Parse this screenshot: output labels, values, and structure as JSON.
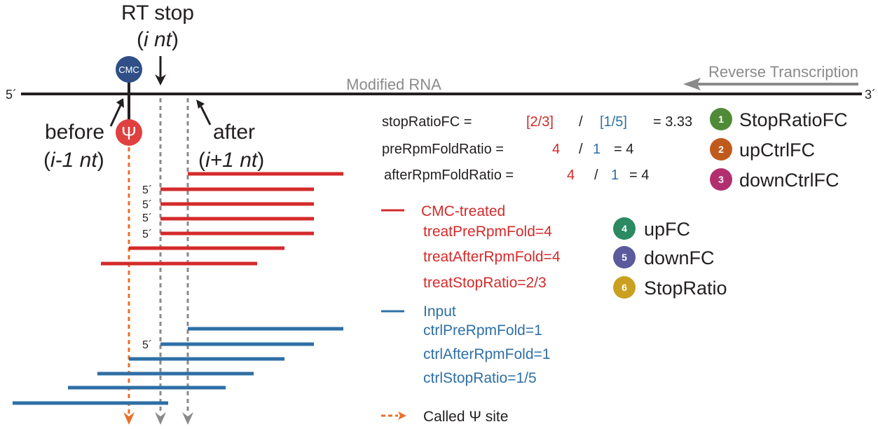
{
  "header": {
    "rt_stop": "RT stop",
    "i_nt_open": "(",
    "i_nt_italic": "i nt",
    "i_nt_close": ")",
    "cmc_label": "CMC",
    "five_prime": "5´",
    "three_prime": "3´",
    "modified_rna": "Modified RNA",
    "reverse_transcription": "Reverse Transcription",
    "before": "before",
    "before_pos_open": "(",
    "before_pos_italic": "i-1 nt",
    "before_pos_close": ")",
    "after": "after",
    "after_pos_open": "(",
    "after_pos_italic": "i+1 nt",
    "after_pos_close": ")",
    "psi": "Ψ"
  },
  "formulas": {
    "stop_ratio_fc": {
      "name": "stopRatioFC =",
      "num": "[2/3]",
      "sep": "/",
      "den": "[1/5]",
      "result": "= 3.33"
    },
    "pre_rpm_fold_ratio": {
      "name": "preRpmFoldRatio =",
      "num": "4",
      "sep": "/",
      "den": "1",
      "result": "= 4"
    },
    "after_rpm_fold_ratio": {
      "name": "afterRpmFoldRatio =",
      "num": "4",
      "sep": "/",
      "den": "1",
      "result": "= 4"
    }
  },
  "badges": [
    {
      "num": "1",
      "label": "StopRatioFC",
      "color": "#4f8a36"
    },
    {
      "num": "2",
      "label": "upCtrlFC",
      "color": "#c05a1c"
    },
    {
      "num": "3",
      "label": "downCtrlFC",
      "color": "#b22f6e"
    },
    {
      "num": "4",
      "label": "upFC",
      "color": "#2b8a62"
    },
    {
      "num": "5",
      "label": "downFC",
      "color": "#5a5a9c"
    },
    {
      "num": "6",
      "label": "StopRatio",
      "color": "#c9a020"
    }
  ],
  "legend": {
    "treated": {
      "title": "CMC-treated",
      "lines": [
        "treatPreRpmFold=4",
        "treatAfterRpmFold=4",
        "treatStopRatio=2/3"
      ],
      "color": "#d42a2a"
    },
    "input": {
      "title": "Input",
      "lines": [
        "ctrlPreRpmFold=1",
        "ctrlAfterRpmFold=1",
        "ctrlStopRatio=1/5"
      ],
      "color": "#2e6fa5"
    },
    "called_site": "Called Ψ site"
  },
  "reads_five_prime_label": "5´",
  "colors": {
    "treated": "#d42a2a",
    "input": "#2e6fa5",
    "arrow_orange": "#e8702a",
    "arrow_gray": "#8a8a8a",
    "cmc_blue": "#2f4f86"
  }
}
